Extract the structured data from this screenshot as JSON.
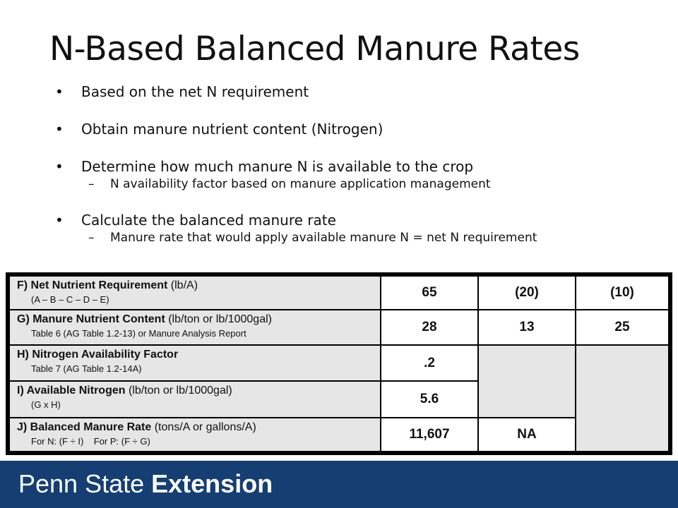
{
  "slide": {
    "title": "N-Based Balanced Manure Rates",
    "bullets": [
      "Based on the net N requirement",
      "Obtain manure nutrient content (Nitrogen)",
      "Determine how much manure N is available to the crop",
      "Calculate the balanced manure rate"
    ],
    "sub_bullets": [
      "N availability factor based on manure application management",
      "Manure rate that would apply available manure N = net N requirement"
    ]
  },
  "table": {
    "rows": [
      {
        "bold": "F) Net Nutrient Requirement",
        "unit": " (lb/A)",
        "note": "(A – B – C – D – E)"
      },
      {
        "bold": "G) Manure Nutrient Content",
        "unit": " (lb/ton or lb/1000gal)",
        "note": "Table 6 (AG Table 1.2-13) or Manure Analysis Report"
      },
      {
        "bold": "H) Nitrogen Availability Factor",
        "unit": "",
        "note": "Table 7 (AG Table 1.2-14A)"
      },
      {
        "bold": "I) Available Nitrogen",
        "unit": " (lb/ton or lb/1000gal)",
        "note": "(G x H)"
      },
      {
        "bold": "J) Balanced Manure Rate",
        "unit": " (tons/A or gallons/A)",
        "note": "For N: (F ÷ I)    For P: (F ÷ G)"
      }
    ],
    "values": {
      "f1": "65",
      "f2": "(20)",
      "f3": "(10)",
      "g1": "28",
      "g2": "13",
      "g3": "25",
      "h1": ".2",
      "i1": "5.6",
      "j1": "11,607",
      "j2": "NA"
    }
  },
  "footer": {
    "brand_regular": "Penn State ",
    "brand_bold": "Extension",
    "background": "#153e73"
  }
}
